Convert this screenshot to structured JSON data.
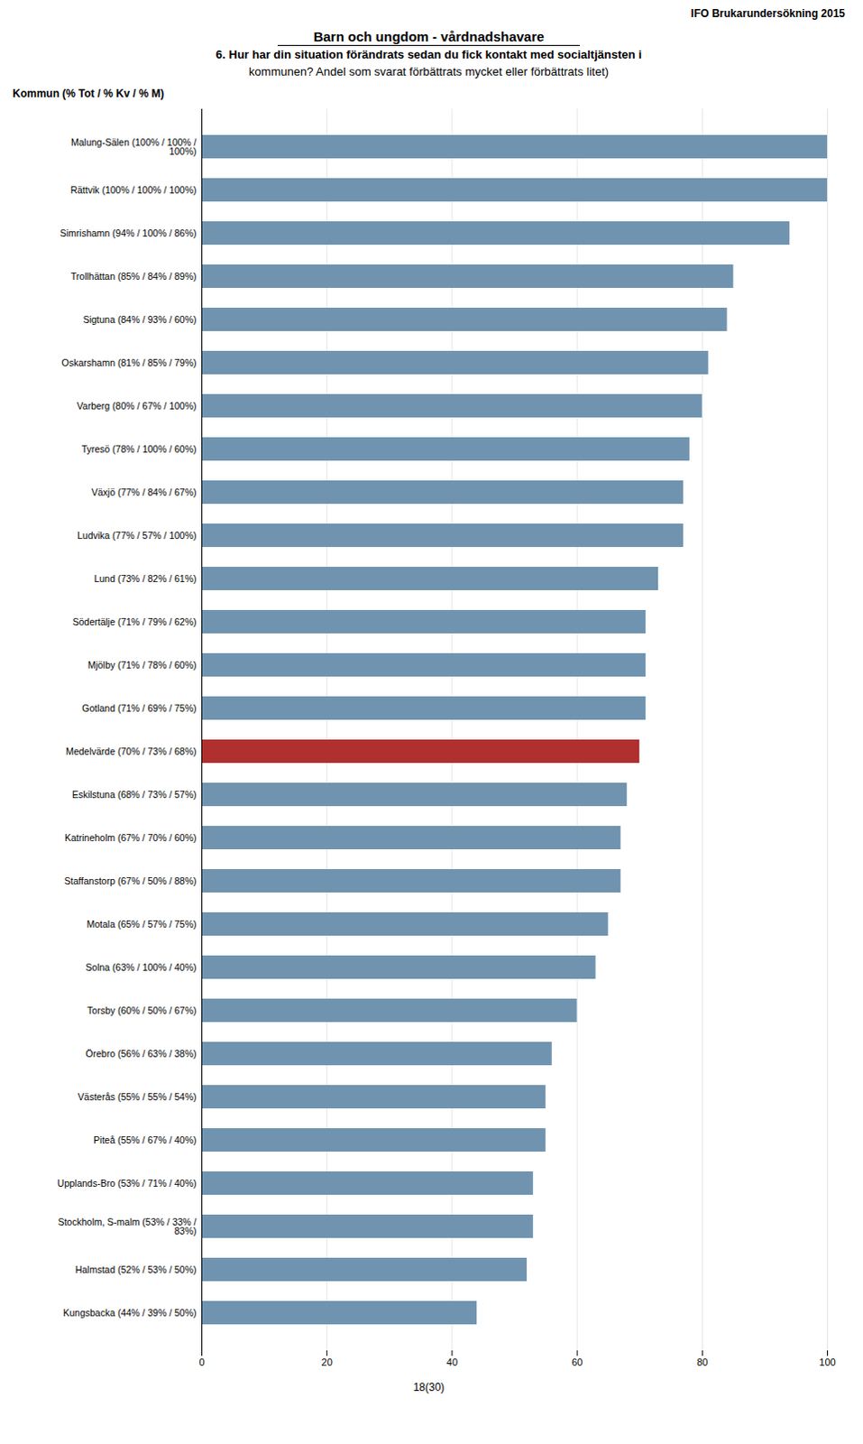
{
  "chart_data": {
    "type": "bar",
    "orientation": "horizontal",
    "title": "Barn och ungdom - vårdnadshavare",
    "subtitle": [
      "6. Hur har din situation förändrats sedan du fick kontakt med socialtjänsten i",
      "kommunen?  Andel som svarat förbättrats mycket eller förbättrats litet)"
    ],
    "ylabel": "Kommun (% Tot / % Kv / % M)",
    "annotations": [
      "IFO Brukarundersökning 2015",
      "18(30)"
    ],
    "categories": [
      "Malung-Sälen (100% / 100% /\n100%)",
      "Rättvik (100% / 100% / 100%)",
      "Simrishamn (94% / 100% / 86%)",
      "Trollhättan (85% / 84% / 89%)",
      "Sigtuna (84% / 93% / 60%)",
      "Oskarshamn (81% / 85% / 79%)",
      "Varberg (80% / 67% / 100%)",
      "Tyresö (78% / 100% / 60%)",
      "Växjö (77% / 84% / 67%)",
      "Ludvika (77% / 57% / 100%)",
      "Lund (73% / 82% / 61%)",
      "Södertälje (71% / 79% / 62%)",
      "Mjölby (71% / 78% / 60%)",
      "Gotland (71% / 69% / 75%)",
      "Medelvärde (70% / 73% / 68%)",
      "Eskilstuna (68% / 73% / 57%)",
      "Katrineholm (67% / 70% / 60%)",
      "Staffanstorp (67% / 50% / 88%)",
      "Motala (65% / 57% / 75%)",
      "Solna (63% / 100% / 40%)",
      "Torsby (60% / 50% / 67%)",
      "Örebro (56% / 63% / 38%)",
      "Västerås (55% / 55% / 54%)",
      "Piteå (55% / 67% / 40%)",
      "Upplands-Bro (53% / 71% / 40%)",
      "Stockholm, S-malm (53% / 33% /\n83%)",
      "Halmstad (52% / 53% / 50%)",
      "Kungsbacka (44% / 39% / 50%)"
    ],
    "values": [
      100,
      100,
      94,
      85,
      84,
      81,
      80,
      78,
      77,
      77,
      73,
      71,
      71,
      71,
      70,
      68,
      67,
      67,
      65,
      63,
      60,
      56,
      55,
      55,
      53,
      53,
      52,
      44
    ],
    "colors": [
      "#7094b0",
      "#7094b0",
      "#7094b0",
      "#7094b0",
      "#7094b0",
      "#7094b0",
      "#7094b0",
      "#7094b0",
      "#7094b0",
      "#7094b0",
      "#7094b0",
      "#7094b0",
      "#7094b0",
      "#7094b0",
      "#b03030",
      "#7094b0",
      "#7094b0",
      "#7094b0",
      "#7094b0",
      "#7094b0",
      "#7094b0",
      "#7094b0",
      "#7094b0",
      "#7094b0",
      "#7094b0",
      "#7094b0",
      "#7094b0",
      "#7094b0"
    ],
    "xlim": [
      0,
      100
    ],
    "xticks": [
      0,
      20,
      40,
      60,
      80,
      100
    ],
    "grid": true
  }
}
